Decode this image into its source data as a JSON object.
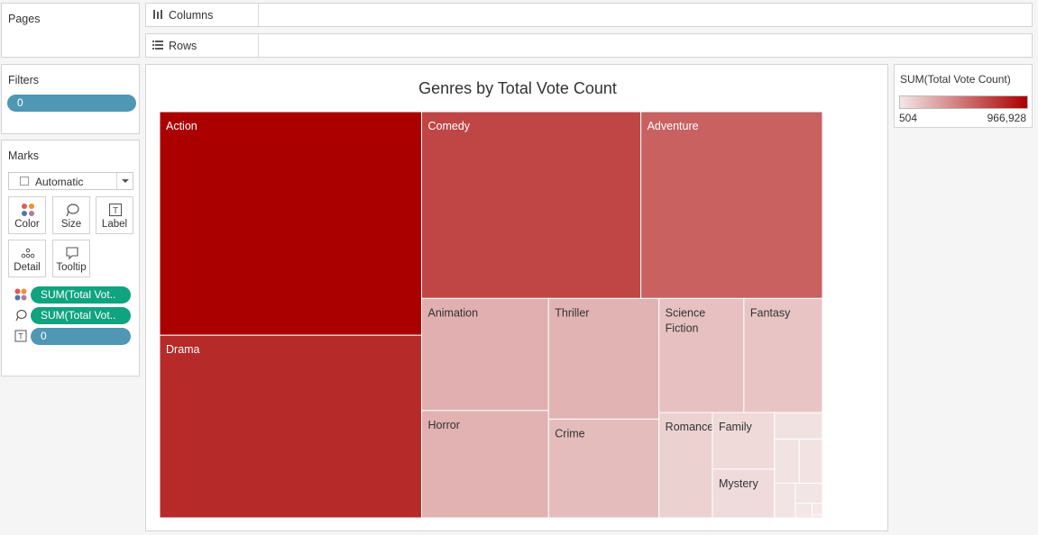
{
  "pages": {
    "title": "Pages"
  },
  "filters": {
    "title": "Filters",
    "pill": "0"
  },
  "marks": {
    "title": "Marks",
    "mark_type": "Automatic",
    "buttons": {
      "color": "Color",
      "size": "Size",
      "label": "Label",
      "detail": "Detail",
      "tooltip": "Tooltip"
    },
    "fields": [
      {
        "icon": "color-dots-icon",
        "text": "SUM(Total Vot..",
        "color": "#10a37f"
      },
      {
        "icon": "size-lasso-icon",
        "text": "SUM(Total Vot..",
        "color": "#10a37f"
      },
      {
        "icon": "label-t-icon",
        "text": "0",
        "color": "#4f97b4"
      }
    ]
  },
  "shelves": {
    "columns": "Columns",
    "rows": "Rows"
  },
  "legend": {
    "title": "SUM(Total Vote Count)",
    "min": "504",
    "max": "966,928",
    "color_low": "#f3e7e7",
    "color_high": "#aa0000"
  },
  "chart_data": {
    "type": "treemap",
    "title": "Genres by Total Vote Count",
    "measure": "SUM(Total Vote Count)",
    "color_range": [
      504,
      966928
    ],
    "items": [
      {
        "label": "Action",
        "value": 966928,
        "labelColor": "#ffffff"
      },
      {
        "label": "Drama",
        "value": 790000,
        "labelColor": "#ffffff"
      },
      {
        "label": "Comedy",
        "value": 676000,
        "labelColor": "#ffffff"
      },
      {
        "label": "Adventure",
        "value": 560000,
        "labelColor": "#ffffff"
      },
      {
        "label": "Animation",
        "value": 235000,
        "labelColor": "#333333"
      },
      {
        "label": "Horror",
        "value": 225000,
        "labelColor": "#333333"
      },
      {
        "label": "Thriller",
        "value": 220000,
        "labelColor": "#333333"
      },
      {
        "label": "Crime",
        "value": 180000,
        "labelColor": "#333333"
      },
      {
        "label": "Science Fiction",
        "value": 160000,
        "labelColor": "#333333"
      },
      {
        "label": "Fantasy",
        "value": 148000,
        "labelColor": "#333333"
      },
      {
        "label": "Romance",
        "value": 93000,
        "labelColor": "#333333"
      },
      {
        "label": "Family",
        "value": 58000,
        "labelColor": "#333333"
      },
      {
        "label": "Mystery",
        "value": 50000,
        "labelColor": "#333333"
      },
      {
        "label": "",
        "value": 21000,
        "labelColor": "#333333"
      },
      {
        "label": "",
        "value": 18000,
        "labelColor": "#333333"
      },
      {
        "label": "",
        "value": 17000,
        "labelColor": "#333333"
      },
      {
        "label": "",
        "value": 12000,
        "labelColor": "#333333"
      },
      {
        "label": "",
        "value": 9000,
        "labelColor": "#333333"
      },
      {
        "label": "",
        "value": 4000,
        "labelColor": "#333333"
      },
      {
        "label": "",
        "value": 2000,
        "labelColor": "#333333"
      },
      {
        "label": "",
        "value": 504,
        "labelColor": "#333333"
      }
    ]
  }
}
